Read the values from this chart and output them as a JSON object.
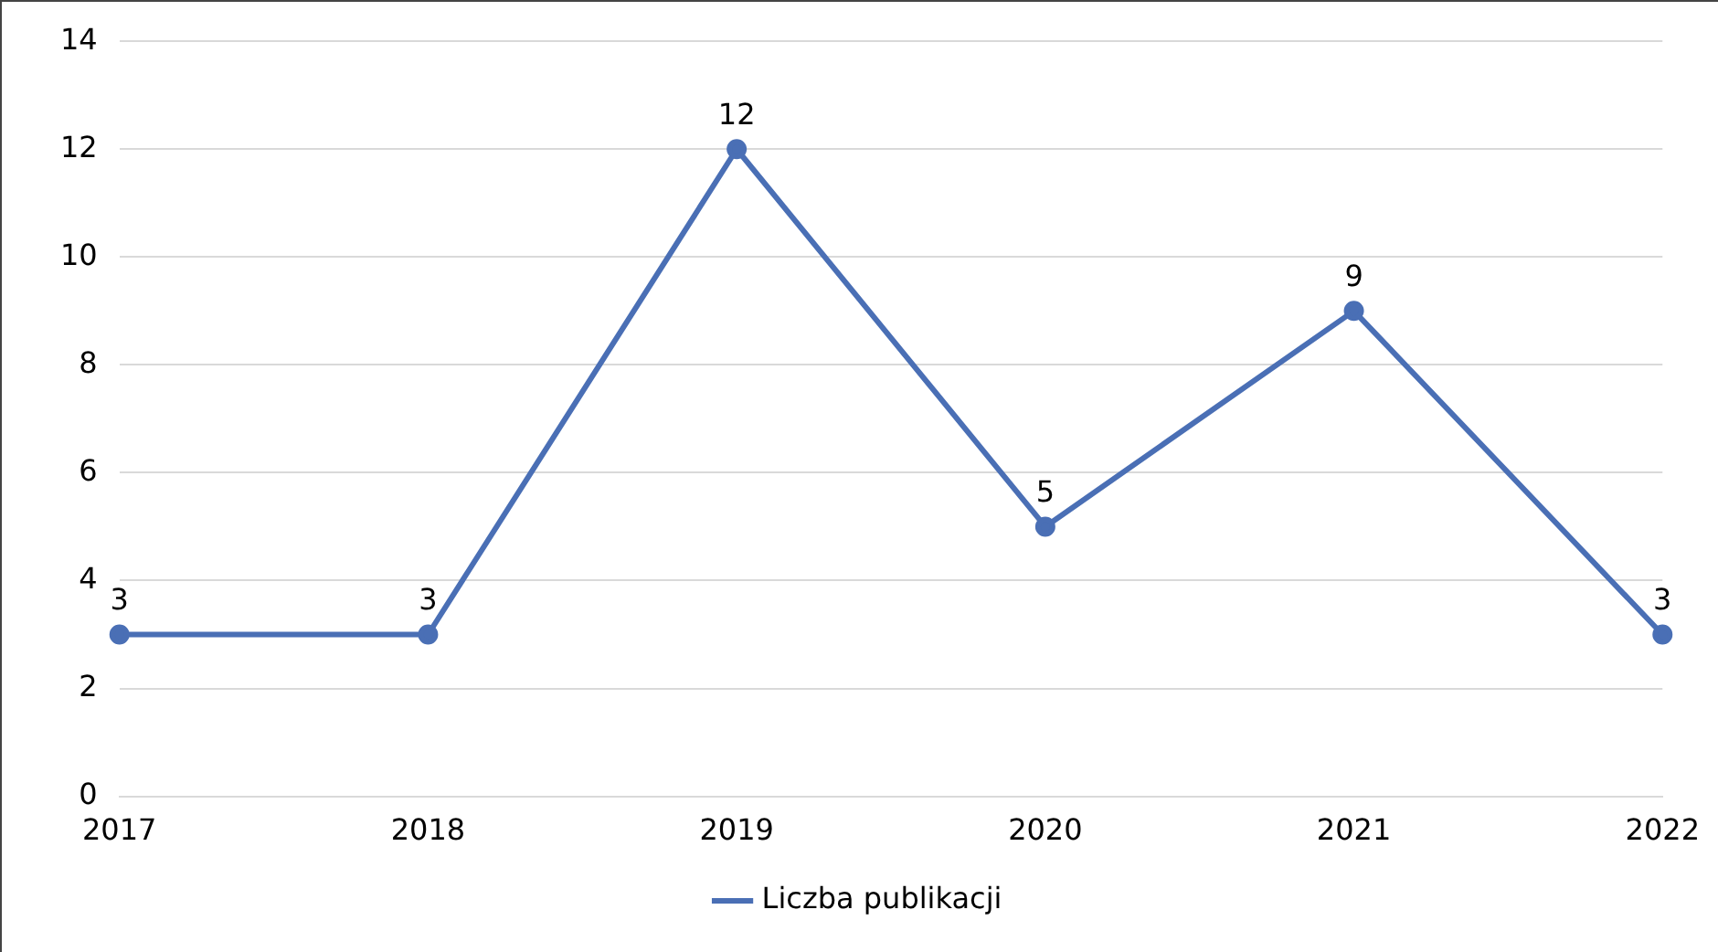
{
  "chart_data": {
    "type": "line",
    "categories": [
      "2017",
      "2018",
      "2019",
      "2020",
      "2021",
      "2022"
    ],
    "series": [
      {
        "name": "Liczba publikacji",
        "color": "#4a6fb5",
        "values": [
          3,
          3,
          12,
          5,
          9,
          3
        ]
      }
    ],
    "ylim": [
      0,
      14
    ],
    "yticks": [
      0,
      2,
      4,
      6,
      8,
      10,
      12,
      14
    ],
    "grid": "y",
    "legend": "bottom",
    "marker": "circle",
    "line_style": "solid",
    "data_labels": true
  }
}
